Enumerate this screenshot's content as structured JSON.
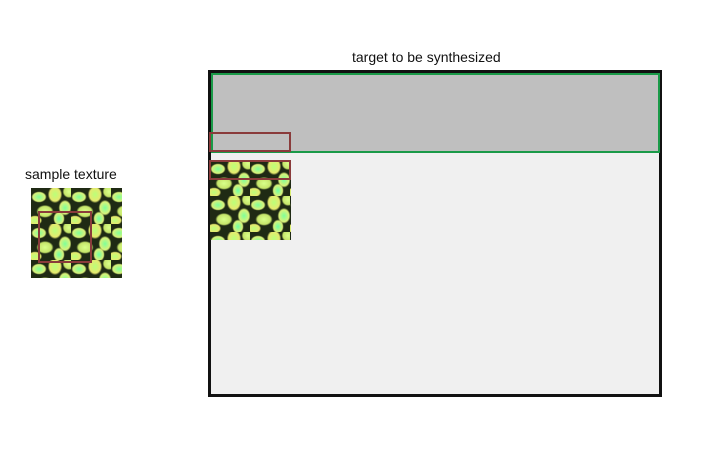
{
  "labels": {
    "sample": "sample texture",
    "target": "target to be synthesized"
  },
  "colors": {
    "canvas_border": "#111111",
    "canvas_fill": "#f0f0f0",
    "filled_region": "#bfbfbf",
    "filled_region_border": "#1a9a48",
    "window_border": "#8a3b3b",
    "texture_dark": "#1f2a14",
    "texture_light": "#d9f27a"
  }
}
